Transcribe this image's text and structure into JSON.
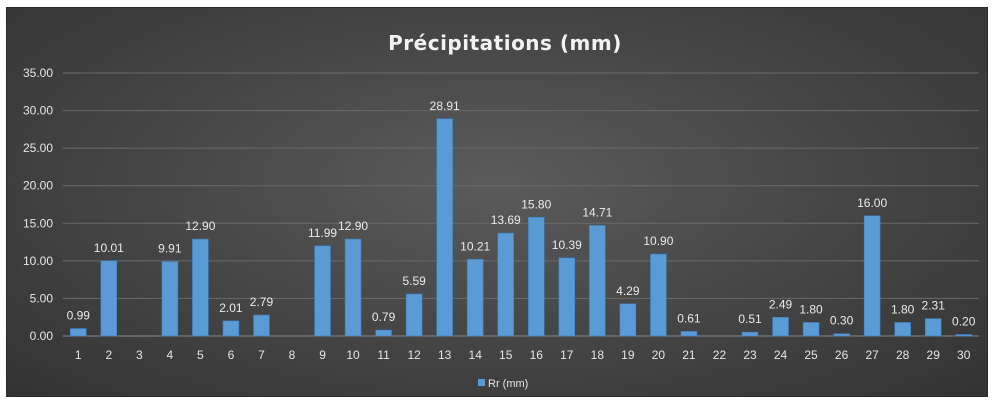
{
  "chart_data": {
    "type": "bar",
    "title": "Précipitations (mm)",
    "xlabel": "",
    "ylabel": "",
    "ylim": [
      0,
      35
    ],
    "yticks": [
      "0.00",
      "5.00",
      "10.00",
      "15.00",
      "20.00",
      "25.00",
      "30.00",
      "35.00"
    ],
    "categories": [
      "1",
      "2",
      "3",
      "4",
      "5",
      "6",
      "7",
      "8",
      "9",
      "10",
      "11",
      "12",
      "13",
      "14",
      "15",
      "16",
      "17",
      "18",
      "19",
      "20",
      "21",
      "22",
      "23",
      "24",
      "25",
      "26",
      "27",
      "28",
      "29",
      "30"
    ],
    "series": [
      {
        "name": "Rr (mm)",
        "values": [
          0.99,
          10.01,
          null,
          9.91,
          12.9,
          2.01,
          2.79,
          null,
          11.99,
          12.9,
          0.79,
          5.59,
          28.91,
          10.21,
          13.69,
          15.8,
          10.39,
          14.71,
          4.29,
          10.9,
          0.61,
          null,
          0.51,
          2.49,
          1.8,
          0.3,
          16.0,
          1.8,
          2.31,
          0.2
        ],
        "labels": [
          "0.99",
          "10.01",
          "",
          "9.91",
          "12.90",
          "2.01",
          "2.79",
          "",
          "11.99",
          "12.90",
          "0.79",
          "5.59",
          "28.91",
          "10.21",
          "13.69",
          "15.80",
          "10.39",
          "14.71",
          "4.29",
          "10.90",
          "0.61",
          "",
          "0.51",
          "2.49",
          "1.80",
          "0.30",
          "16.00",
          "1.80",
          "2.31",
          "0.20"
        ]
      }
    ],
    "grid": true,
    "legend": "bottom",
    "colors": {
      "bar": "#5b9bd5",
      "bar_edge": "#3f7fbf",
      "grid": "#6a6a6a",
      "axis": "#8a8a8a"
    }
  }
}
